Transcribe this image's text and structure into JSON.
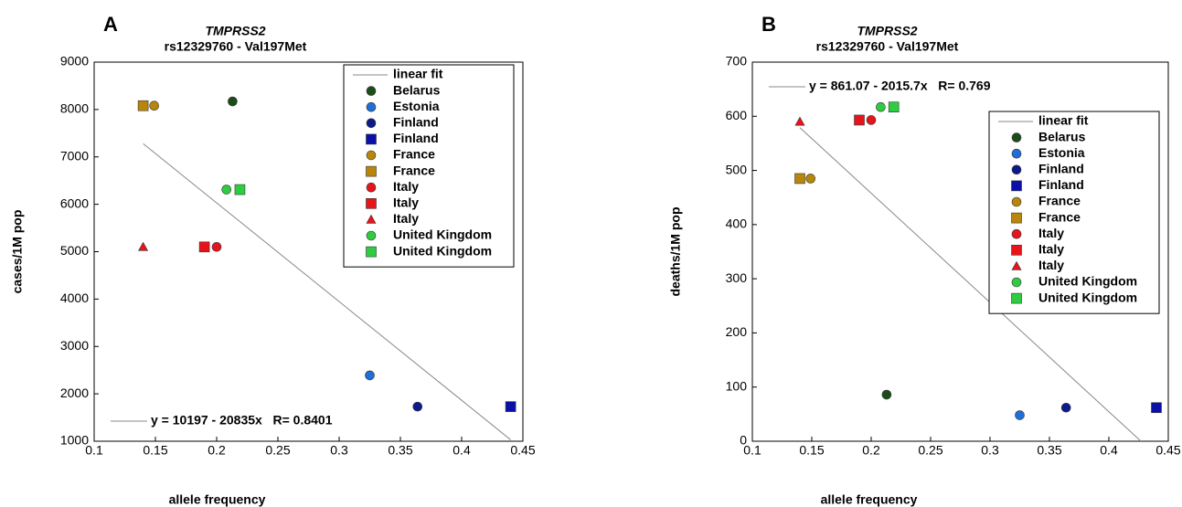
{
  "chart_data": [
    {
      "type": "scatter",
      "panel": "A",
      "title": "TMPRSS2",
      "subtitle": "rs12329760 - Val197Met",
      "xlabel": "allele frequency",
      "ylabel": "cases/1M pop",
      "xlim": [
        0.1,
        0.45
      ],
      "xticks": [
        0.1,
        0.15,
        0.2,
        0.25,
        0.3,
        0.35,
        0.4,
        0.45
      ],
      "ylim": [
        1000,
        9000
      ],
      "yticks": [
        1000,
        2000,
        3000,
        4000,
        5000,
        6000,
        7000,
        8000,
        9000
      ],
      "legend": "upper right",
      "fit": {
        "name": "linear fit",
        "equation": "y = 10197 - 20835x   R= 0.8401",
        "color": "#888888",
        "x": [
          0.14,
          0.44
        ],
        "values": [
          7280,
          1030
        ]
      },
      "series": [
        {
          "name": "Belarus",
          "marker": "circle",
          "color": "#1b4d1b",
          "x": [
            0.213
          ],
          "values": [
            8170
          ]
        },
        {
          "name": "Estonia",
          "marker": "circle",
          "color": "#1f6fd6",
          "x": [
            0.325
          ],
          "values": [
            2390
          ]
        },
        {
          "name": "Finland",
          "marker": "circle",
          "color": "#0c1a8a",
          "x": [
            0.364
          ],
          "values": [
            1730
          ]
        },
        {
          "name": "Finland",
          "marker": "square",
          "color": "#0a10a8",
          "x": [
            0.44
          ],
          "values": [
            1730
          ]
        },
        {
          "name": "France",
          "marker": "circle",
          "color": "#b8860b",
          "x": [
            0.149
          ],
          "values": [
            8080
          ]
        },
        {
          "name": "France",
          "marker": "square",
          "color": "#b8860b",
          "x": [
            0.14
          ],
          "values": [
            8080
          ]
        },
        {
          "name": "Italy",
          "marker": "circle",
          "color": "#e8141b",
          "x": [
            0.2
          ],
          "values": [
            5100
          ]
        },
        {
          "name": "Italy",
          "marker": "square",
          "color": "#e8141b",
          "x": [
            0.19
          ],
          "values": [
            5100
          ]
        },
        {
          "name": "Italy",
          "marker": "triangle",
          "color": "#e8141b",
          "x": [
            0.14
          ],
          "values": [
            5100
          ]
        },
        {
          "name": "United Kingdom",
          "marker": "circle",
          "color": "#2ecc40",
          "x": [
            0.208
          ],
          "values": [
            6310
          ]
        },
        {
          "name": "United Kingdom",
          "marker": "square",
          "color": "#2ecc40",
          "x": [
            0.219
          ],
          "values": [
            6310
          ]
        }
      ]
    },
    {
      "type": "scatter",
      "panel": "B",
      "title": "TMPRSS2",
      "subtitle": "rs12329760 - Val197Met",
      "xlabel": "allele frequency",
      "ylabel": "deaths/1M pop",
      "xlim": [
        0.1,
        0.45
      ],
      "xticks": [
        0.1,
        0.15,
        0.2,
        0.25,
        0.3,
        0.35,
        0.4,
        0.45
      ],
      "ylim": [
        0,
        700
      ],
      "yticks": [
        0,
        100,
        200,
        300,
        400,
        500,
        600,
        700
      ],
      "legend": "center right",
      "fit": {
        "name": "linear fit",
        "equation": "y = 861.07 - 2015.7x   R= 0.769",
        "color": "#888888",
        "x": [
          0.14,
          0.427
        ],
        "values": [
          579,
          0
        ]
      },
      "series": [
        {
          "name": "Belarus",
          "marker": "circle",
          "color": "#1b4d1b",
          "x": [
            0.213
          ],
          "values": [
            86
          ]
        },
        {
          "name": "Estonia",
          "marker": "circle",
          "color": "#1f6fd6",
          "x": [
            0.325
          ],
          "values": [
            48
          ]
        },
        {
          "name": "Finland",
          "marker": "circle",
          "color": "#0c1a8a",
          "x": [
            0.364
          ],
          "values": [
            62
          ]
        },
        {
          "name": "Finland",
          "marker": "square",
          "color": "#0a10a8",
          "x": [
            0.44
          ],
          "values": [
            62
          ]
        },
        {
          "name": "France",
          "marker": "circle",
          "color": "#b8860b",
          "x": [
            0.149
          ],
          "values": [
            485
          ]
        },
        {
          "name": "France",
          "marker": "square",
          "color": "#b8860b",
          "x": [
            0.14
          ],
          "values": [
            485
          ]
        },
        {
          "name": "Italy",
          "marker": "circle",
          "color": "#e8141b",
          "x": [
            0.2
          ],
          "values": [
            593
          ]
        },
        {
          "name": "Italy",
          "marker": "square",
          "color": "#e8141b",
          "x": [
            0.19
          ],
          "values": [
            593
          ]
        },
        {
          "name": "Italy",
          "marker": "triangle",
          "color": "#e8141b",
          "x": [
            0.14
          ],
          "values": [
            590
          ]
        },
        {
          "name": "United Kingdom",
          "marker": "circle",
          "color": "#2ecc40",
          "x": [
            0.208
          ],
          "values": [
            617
          ]
        },
        {
          "name": "United Kingdom",
          "marker": "square",
          "color": "#2ecc40",
          "x": [
            0.219
          ],
          "values": [
            617
          ]
        }
      ]
    }
  ]
}
